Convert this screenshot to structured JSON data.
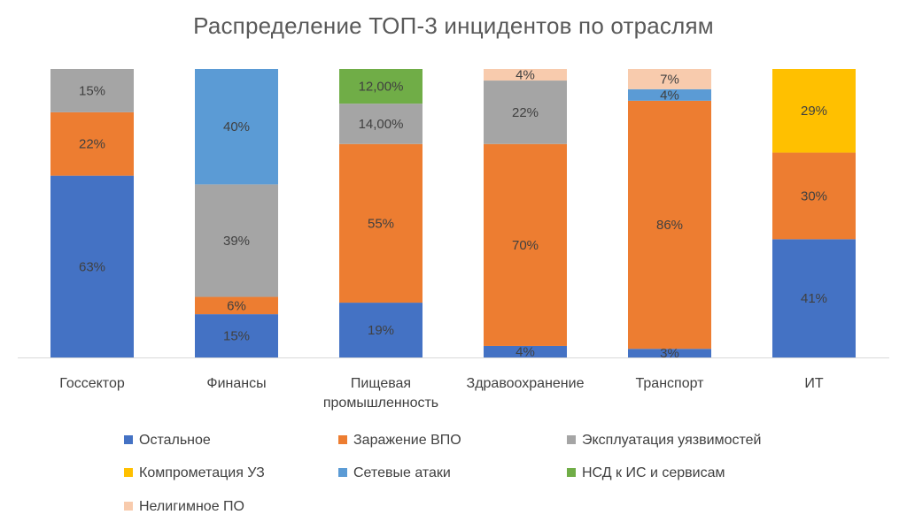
{
  "chart_data": {
    "type": "bar",
    "stacked": true,
    "title": "Распределение ТОП-3 инцидентов по отраслям",
    "categories": [
      "Госсектор",
      "Финансы",
      "Пищевая промышленность",
      "Здравоохранение",
      "Транспорт",
      "ИТ"
    ],
    "category_lines": [
      [
        "Госсектор"
      ],
      [
        "Финансы"
      ],
      [
        "Пищевая",
        "промышленность"
      ],
      [
        "Здравоохранение"
      ],
      [
        "Транспорт"
      ],
      [
        "ИТ"
      ]
    ],
    "series": [
      {
        "name": "Остальное",
        "color": "#4472C4",
        "values": [
          63,
          15,
          19,
          4,
          3,
          41
        ],
        "labels": [
          "63%",
          "15%",
          "19%",
          "4%",
          "3%",
          "41%"
        ]
      },
      {
        "name": "Заражение ВПО",
        "color": "#ED7D31",
        "values": [
          22,
          6,
          55,
          70,
          86,
          30
        ],
        "labels": [
          "22%",
          "6%",
          "55%",
          "70%",
          "86%",
          "30%"
        ]
      },
      {
        "name": "Эксплуатация уязвимостей",
        "color": "#A5A5A5",
        "values": [
          15,
          39,
          14,
          22,
          0,
          0
        ],
        "labels": [
          "15%",
          "39%",
          "14,00%",
          "22%",
          "",
          ""
        ]
      },
      {
        "name": "Компрометация УЗ",
        "color": "#FFC000",
        "values": [
          0,
          0,
          0,
          0,
          0,
          29
        ],
        "labels": [
          "",
          "",
          "",
          "",
          "",
          "29%"
        ]
      },
      {
        "name": "Сетевые атаки",
        "color": "#5B9BD5",
        "values": [
          0,
          40,
          0,
          0,
          4,
          0
        ],
        "labels": [
          "",
          "40%",
          "",
          "",
          "4%",
          ""
        ]
      },
      {
        "name": "НСД к ИС и сервисам",
        "color": "#70AD47",
        "values": [
          0,
          0,
          12,
          0,
          0,
          0
        ],
        "labels": [
          "",
          "",
          "12,00%",
          "",
          "",
          ""
        ]
      },
      {
        "name": "Нелигимное ПО",
        "color": "#F8CBAD",
        "values": [
          0,
          0,
          0,
          4,
          7,
          0
        ],
        "labels": [
          "",
          "",
          "",
          "4%",
          "7%",
          ""
        ]
      }
    ],
    "ylim": [
      0,
      100
    ],
    "grid": false,
    "legend_position": "bottom"
  }
}
